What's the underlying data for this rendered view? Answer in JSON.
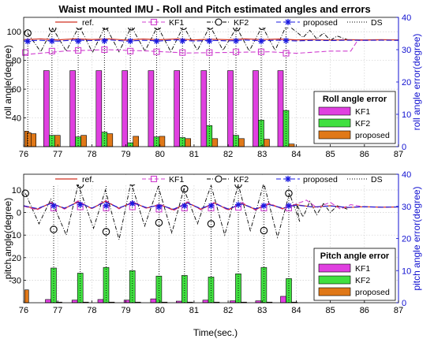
{
  "chart_data": {
    "type": "line",
    "title": "Waist mounted IMU - Roll and Pitch estimated angles and errors",
    "xlabel": "Time(sec.)",
    "colors": {
      "ref": "#d03020",
      "KF1": "#d040d0",
      "KF2": "#000000",
      "proposed": "#1a1ae0",
      "DS": "#000000",
      "bar_KF1": "#e040e0",
      "bar_KF2": "#40e040",
      "bar_proposed": "#e07818",
      "right_axis": "#1010d0"
    },
    "panels": [
      {
        "id": "roll",
        "ylabel": "roll angle(degree)",
        "y2label": "roll angle error(degree)",
        "xlim": [
          76,
          87
        ],
        "ylim": [
          20,
          110
        ],
        "y2lim": [
          0,
          40
        ],
        "xticks": [
          76,
          77,
          78,
          79,
          80,
          81,
          82,
          83,
          84,
          85,
          86,
          87
        ],
        "yticks": [
          40,
          60,
          80,
          100
        ],
        "y2ticks": [
          0,
          10,
          20,
          30,
          40
        ],
        "line_legend": [
          "ref.",
          "KF1",
          "KF2",
          "proposed",
          "DS"
        ],
        "bar_legend_title": "Roll angle error",
        "bar_legend": [
          "KF1",
          "KF2",
          "proposed"
        ],
        "ds_times": [
          76.12,
          76.83,
          77.6,
          78.37,
          79.13,
          79.9,
          80.66,
          81.45,
          82.23,
          82.97,
          83.7
        ],
        "ref": {
          "x": [
            76,
            76.5,
            77,
            77.5,
            78,
            78.5,
            79,
            79.5,
            80,
            80.5,
            81,
            81.5,
            82,
            82.5,
            83,
            83.5,
            84,
            84.5,
            85,
            85.5,
            86,
            86.5,
            87
          ],
          "y": [
            94.5,
            95,
            94.3,
            95.1,
            94.6,
            95,
            94.2,
            94.9,
            94.4,
            95,
            94.3,
            94.8,
            94.4,
            95,
            94.5,
            94.9,
            94.3,
            94.5,
            94.2,
            94.4,
            94.3,
            94.4,
            94.3
          ]
        },
        "KF1": {
          "x": [
            76,
            77.2,
            78.4,
            79.6,
            80.8,
            82,
            83.2,
            84,
            85,
            85.6,
            85.8,
            86.5,
            87
          ],
          "y": [
            84,
            86.5,
            87.5,
            86.6,
            85.2,
            85.6,
            86,
            85,
            86.5,
            86.5,
            94,
            94.2,
            94.3
          ]
        },
        "KF1_markers": {
          "x": [
            76.05,
            76.83,
            77.6,
            78.37,
            79.13,
            79.9,
            80.66,
            81.45,
            82.23,
            82.97,
            83.7
          ],
          "y": [
            85.5,
            86.5,
            87,
            87.5,
            86.5,
            86,
            85.5,
            85.5,
            86,
            86,
            85
          ]
        },
        "KF2_peaks": {
          "x": [
            76.12,
            76.85,
            77.63,
            78.4,
            79.16,
            79.93,
            80.69,
            81.47,
            82.25,
            83,
            83.72
          ],
          "y": [
            99,
            102.5,
            104,
            104,
            103.5,
            103.8,
            103.8,
            104,
            103,
            103.8,
            105
          ]
        },
        "KF2_troughs": {
          "x": [
            76.5,
            77.25,
            78.02,
            78.8,
            79.56,
            80.32,
            81.1,
            81.85,
            82.62,
            83.38
          ],
          "y": [
            86,
            86.5,
            85.5,
            86,
            86.5,
            86,
            87,
            87,
            86.5,
            87
          ]
        },
        "KF2_markers": {
          "x": [
            76.12,
            76.85,
            77.63,
            78.4,
            79.16,
            79.93,
            80.69,
            81.47,
            82.25,
            83,
            83.72
          ],
          "y": [
            99,
            102.5,
            104,
            104,
            103.5,
            103.8,
            103.8,
            104,
            103,
            103.8,
            105
          ]
        },
        "KF2_tail": {
          "x": [
            84,
            84.2,
            84.4,
            84.6,
            84.8,
            85,
            85.2,
            85.5
          ],
          "y": [
            100,
            96,
            101,
            95,
            99,
            94,
            97,
            94.5
          ]
        },
        "proposed": {
          "x": [
            76,
            76.5,
            77,
            77.5,
            78,
            78.5,
            79,
            79.5,
            80,
            80.5,
            81,
            81.5,
            82,
            82.5,
            83,
            83.5,
            84,
            84.5,
            85,
            85.5,
            86,
            86.5,
            87
          ],
          "y": [
            93.6,
            94,
            93.4,
            94.2,
            93.8,
            94.3,
            93.4,
            94,
            93.6,
            94.3,
            93.5,
            94,
            93.6,
            94.2,
            93.7,
            94.1,
            93.6,
            94,
            93.8,
            94.1,
            94,
            94.1,
            94
          ]
        },
        "proposed_markers": {
          "x": [
            76.12,
            76.83,
            77.6,
            78.37,
            79.13,
            79.9,
            80.66,
            81.45,
            82.23,
            82.97,
            83.7
          ],
          "y": [
            93.3,
            93.5,
            93.4,
            93.6,
            93.5,
            93.4,
            93.6,
            93.5,
            93.6,
            93.4,
            93.8
          ]
        },
        "bars": {
          "x": [
            76.12,
            76.83,
            77.6,
            78.37,
            79.13,
            79.9,
            80.66,
            81.45,
            82.23,
            82.97,
            83.7
          ],
          "KF1": [
            0,
            23.5,
            23.5,
            23.5,
            23.5,
            23.5,
            23.5,
            23.5,
            23.5,
            23.5,
            23.5
          ],
          "KF2": [
            0,
            3.5,
            3,
            4.5,
            1.2,
            3,
            2.8,
            6.5,
            3.5,
            8.2,
            11.2
          ],
          "proposed": [
            4,
            3.5,
            3.5,
            4,
            3.2,
            3.2,
            2.5,
            2.5,
            2.5,
            2.3,
            0.8
          ]
        },
        "bar_stubs": {
          "x": [
            76.03,
            76.1
          ],
          "values": [
            4.8,
            4.3
          ]
        }
      },
      {
        "id": "pitch",
        "ylabel": "pitch angle(degree)",
        "y2label": "pitch angle error(degree)",
        "xlim": [
          76,
          87
        ],
        "ylim": [
          -40,
          17
        ],
        "y2lim": [
          0,
          40
        ],
        "xticks": [
          76,
          77,
          78,
          79,
          80,
          81,
          82,
          83,
          84,
          85,
          86,
          87
        ],
        "yticks": [
          -30,
          -20,
          -10,
          0,
          10
        ],
        "y2ticks": [
          0,
          10,
          20,
          30,
          40
        ],
        "line_legend": [
          "ref.",
          "KF1",
          "KF2",
          "proposed",
          "DS"
        ],
        "bar_legend_title": "Pitch angle error",
        "bar_legend": [
          "KF1",
          "KF2",
          "proposed"
        ],
        "ds_times": [
          76.88,
          77.66,
          78.42,
          79.19,
          79.97,
          80.72,
          81.5,
          82.3,
          83.05,
          83.78
        ],
        "ref": {
          "x": [
            76,
            76.4,
            76.8,
            77.2,
            77.6,
            78,
            78.4,
            78.8,
            79.2,
            79.6,
            80,
            80.4,
            80.8,
            81.2,
            81.6,
            82,
            82.4,
            82.8,
            83.2,
            83.6,
            84,
            84.5,
            85,
            85.5,
            86,
            86.5,
            87
          ],
          "y": [
            3,
            1.5,
            4.2,
            1.8,
            4.8,
            1.8,
            5,
            1.9,
            4.6,
            2,
            3.5,
            1.2,
            4.4,
            1.5,
            4.2,
            1.3,
            4,
            1.4,
            3.7,
            1.8,
            3.5,
            2.4,
            3,
            2.2,
            2.6,
            2.4,
            2.5
          ]
        },
        "KF1": {
          "x": [
            76,
            76.4,
            76.8,
            77.2,
            77.6,
            78,
            78.4,
            78.8,
            79.2,
            79.6,
            80,
            80.4,
            80.8,
            81.2,
            81.6,
            82,
            82.4,
            82.8,
            83.2,
            83.6,
            84,
            84.3,
            84.6,
            85,
            85.3,
            85.6,
            86,
            86.5,
            87
          ],
          "y": [
            2.8,
            1.2,
            4.5,
            1.5,
            5.2,
            1.6,
            5.5,
            1.6,
            5,
            1.8,
            3.8,
            0.8,
            4.8,
            1.2,
            4.6,
            1,
            4.5,
            1.1,
            4.2,
            1.5,
            3.8,
            5.5,
            2.2,
            4.5,
            1.5,
            3.5,
            2.5,
            2.4,
            2.5
          ]
        },
        "KF1_markers": {
          "x": [
            76.88,
            77.66,
            78.42,
            79.19,
            79.97,
            80.72,
            81.5,
            82.3,
            83.05,
            83.78
          ],
          "y": [
            2,
            2.5,
            2,
            2.5,
            1.5,
            2,
            2,
            2.3,
            2,
            2
          ]
        },
        "KF2_peaks": {
          "x": [
            76.05,
            76.8,
            77.6,
            78.4,
            79.15,
            79.95,
            80.7,
            81.5,
            82.3,
            83.05,
            83.8
          ],
          "y": [
            8.5,
            6,
            12.5,
            10,
            13.5,
            11.5,
            10.5,
            12,
            12.5,
            13,
            8.5
          ]
        },
        "KF2_troughs": {
          "x": [
            76.45,
            77.25,
            78.05,
            78.8,
            79.55,
            80.35,
            81.1,
            81.9,
            82.65,
            83.45,
            84.1
          ],
          "y": [
            -5,
            -10,
            -7,
            -12,
            -6,
            -9,
            -5,
            -10,
            -8,
            -11,
            -4
          ]
        },
        "KF2_markers": {
          "x": [
            76.05,
            76.88,
            77.66,
            78.42,
            79.19,
            79.97,
            80.72,
            81.5,
            82.3,
            83.05,
            83.78
          ],
          "y": [
            8.5,
            -7.5,
            12.5,
            -8.5,
            13.5,
            -4.5,
            10.5,
            -5,
            12.5,
            -8,
            8.5
          ]
        },
        "KF2_tail": {
          "x": [
            84,
            84.2,
            84.4,
            84.6,
            84.8,
            85,
            85.2,
            85.5
          ],
          "y": [
            4,
            -2,
            5,
            -1,
            4,
            0,
            3,
            1.5
          ]
        },
        "proposed": {
          "x": [
            76,
            76.4,
            76.8,
            77.2,
            77.6,
            78,
            78.4,
            78.8,
            79.2,
            79.6,
            80,
            80.4,
            80.8,
            81.2,
            81.6,
            82,
            82.4,
            82.8,
            83.2,
            83.6,
            84,
            84.5,
            85,
            85.5,
            86,
            86.5,
            87
          ],
          "y": [
            3,
            1.8,
            4,
            2,
            4.5,
            2,
            4.7,
            2.1,
            4.3,
            2.2,
            3.3,
            1.5,
            4.2,
            1.8,
            4,
            1.6,
            3.8,
            1.7,
            3.5,
            2,
            3.3,
            2.5,
            2.9,
            2.3,
            2.6,
            2.4,
            2.5
          ]
        },
        "proposed_markers": {
          "x": [
            76.88,
            77.66,
            78.42,
            79.19,
            79.97,
            80.72,
            81.5,
            82.3,
            83.05,
            83.78
          ],
          "y": [
            3,
            3.5,
            3,
            4,
            2.5,
            3,
            3,
            3.5,
            3,
            3
          ]
        },
        "bars": {
          "x": [
            76.88,
            77.66,
            78.42,
            79.19,
            79.97,
            80.72,
            81.5,
            82.3,
            83.05,
            83.78
          ],
          "KF1": [
            1,
            0.8,
            1,
            0.8,
            1.2,
            0.5,
            0.8,
            0.6,
            0.6,
            2
          ],
          "KF2": [
            10.8,
            9.2,
            11,
            10,
            8.3,
            8.5,
            8,
            9,
            11,
            7.5
          ],
          "proposed": [
            0.2,
            0.2,
            0.2,
            0.2,
            0.2,
            0.2,
            0.2,
            0.2,
            0.2,
            0.2
          ]
        },
        "bar_stubs": {
          "x": [
            76.03
          ],
          "values": [
            4
          ]
        }
      }
    ]
  }
}
